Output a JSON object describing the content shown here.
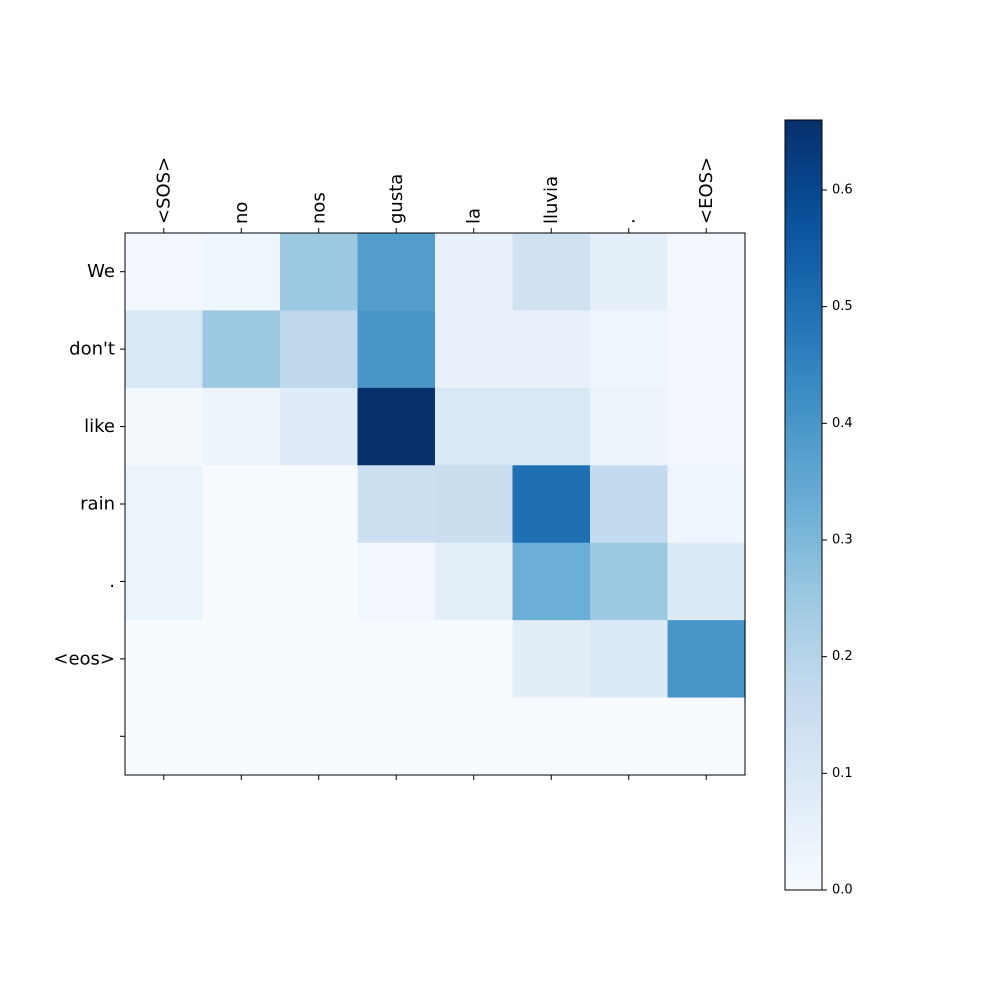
{
  "chart_data": {
    "type": "heatmap",
    "title": "",
    "xlabel": "",
    "ylabel": "",
    "x_labels": [
      "<SOS>",
      "no",
      "nos",
      "gusta",
      "la",
      "lluvia",
      ".",
      "<EOS>"
    ],
    "y_labels": [
      "We",
      "don't",
      "like",
      "rain",
      ".",
      "<eos>",
      ""
    ],
    "values": [
      [
        0.02,
        0.03,
        0.25,
        0.38,
        0.05,
        0.13,
        0.06,
        0.02
      ],
      [
        0.1,
        0.25,
        0.18,
        0.4,
        0.05,
        0.05,
        0.03,
        0.02
      ],
      [
        0.01,
        0.04,
        0.08,
        0.66,
        0.1,
        0.1,
        0.04,
        0.02
      ],
      [
        0.04,
        0.0,
        0.0,
        0.14,
        0.15,
        0.5,
        0.17,
        0.03
      ],
      [
        0.04,
        0.0,
        0.0,
        0.02,
        0.06,
        0.33,
        0.25,
        0.09
      ],
      [
        0.0,
        0.0,
        0.0,
        0.0,
        0.0,
        0.07,
        0.09,
        0.4
      ],
      [
        0.0,
        0.0,
        0.0,
        0.0,
        0.0,
        0.0,
        0.0,
        0.0
      ]
    ],
    "colormap": "Blues",
    "vmin": 0.0,
    "vmax": 0.66,
    "colorbar_ticks": [
      "0.0",
      "0.1",
      "0.2",
      "0.3",
      "0.4",
      "0.5",
      "0.6"
    ],
    "grid": false,
    "x_tick_position": "top",
    "x_tick_rotation": 90
  }
}
